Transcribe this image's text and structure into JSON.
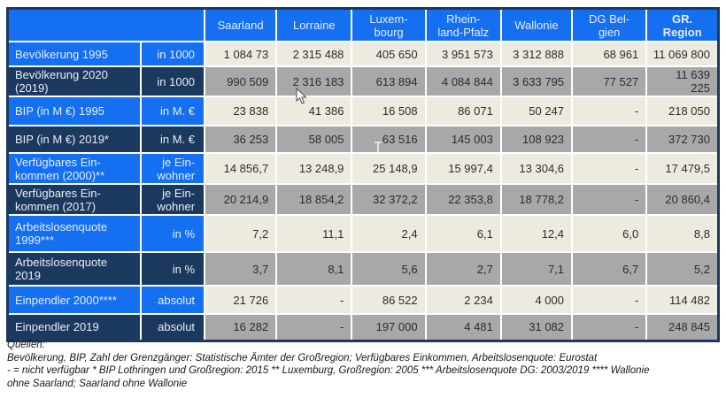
{
  "table": {
    "corner_label": "",
    "columns": [
      "Saarland",
      "Lorraine",
      "Luxem-\nbourg",
      "Rhein-\nland-Pfalz",
      "Wallonie",
      "DG Bel-\ngien",
      "GR.\nRegion"
    ],
    "rows": [
      {
        "label": "Bevölkerung 1995",
        "unit": "in 1000",
        "values": [
          "1 084 73",
          "2 315 488",
          "405 650",
          "3 951 573",
          "3 312 888",
          "68 961",
          "11 069 800"
        ]
      },
      {
        "label": "Bevölkerung 2020\n(2019)",
        "unit": "in 1000",
        "values": [
          "990 509",
          "2 316 183",
          "613 894",
          "4 084 844",
          "3 633 795",
          "77 527",
          "11 639\n225"
        ]
      },
      {
        "label": "BIP (in M €) 1995",
        "unit": "in M. €",
        "values": [
          "23 838",
          "41 386",
          "16 508",
          "86 071",
          "50 247",
          "-",
          "218 050"
        ]
      },
      {
        "label": "BIP (in M €) 2019*",
        "unit": "in M. €",
        "values": [
          "36 253",
          "58 005",
          "63 516",
          "145 003",
          "108 923",
          "-",
          "372 730"
        ]
      },
      {
        "label": "Verfügbares Ein-\nkommen (2000)**",
        "unit": "je Ein-\nwohner",
        "values": [
          "14 856,7",
          "13 248,9",
          "25 148,9",
          "15 997,4",
          "13 304,6",
          "-",
          "17 479,5"
        ]
      },
      {
        "label": "Verfügbares Ein-\nkommen (2017)",
        "unit": "je Ein-\nwohner",
        "values": [
          "20 214,9",
          "18 854,2",
          "32 372,2",
          "22 353,8",
          "18 778,2",
          "-",
          "20 860,4"
        ]
      },
      {
        "label": "Arbeitslosenquote\n1999***",
        "unit": "in %",
        "values": [
          "7,2",
          "11,1",
          "2,4",
          "6,1",
          "12,4",
          "6,0",
          "8,8"
        ]
      },
      {
        "label": "Arbeitslosenquote\n2019",
        "unit": "in %",
        "values": [
          "3,7",
          "8,1",
          "5,6",
          "2,7",
          "7,1",
          "6,7",
          "5,2"
        ]
      },
      {
        "label": "Einpendler 2000****",
        "unit": "absolut",
        "values": [
          "21 726",
          "-",
          "86 522",
          "2 234",
          "4 000",
          "-",
          "114 482"
        ]
      },
      {
        "label": "Einpendler 2019",
        "unit": "absolut",
        "values": [
          "16 282",
          "-",
          "197 000",
          "4 481",
          "31 082",
          "-",
          "248 845"
        ]
      }
    ]
  },
  "footnotes": {
    "lines": [
      "Quellen:",
      "Bevölkerung, BIP, Zahl der Grenzgänger: Statistische Ämter der Großregion; Verfügbares Einkommen, Arbeitslosenquote: Eurostat",
      "- = nicht verfügbar * BIP Lothringen und Großregion: 2015 ** Luxemburg, Großregion: 2005  *** Arbeitslosenquote DG: 2003/2019 **** Wallonie",
      "ohne Saarland; Saarland ohne Wallonie"
    ]
  },
  "colors": {
    "header_blue": "#1470F0",
    "dark_navy": "#1B395E",
    "row_light": "#EDEBE0",
    "row_gray": "#A8A8A8",
    "grid_white": "#FFFFFF",
    "label_text": "#E8EDF6"
  }
}
